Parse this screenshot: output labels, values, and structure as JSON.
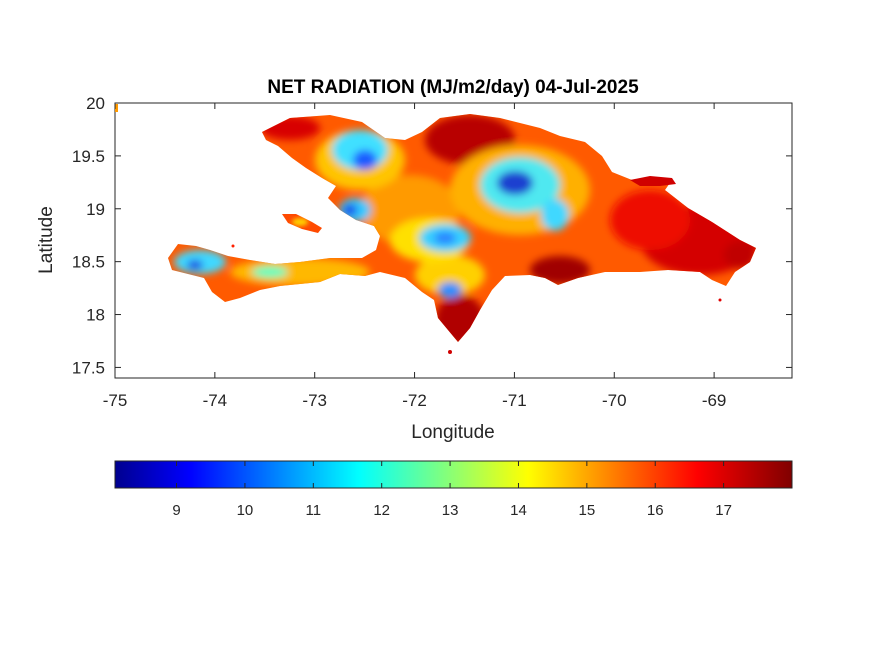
{
  "chart_data": {
    "type": "heatmap",
    "title": "NET RADIATION (MJ/m2/day) 04-Jul-2025",
    "xlabel": "Longitude",
    "ylabel": "Latitude",
    "xlim": [
      -75,
      -68.22
    ],
    "ylim": [
      17.4,
      20
    ],
    "xticks": [
      -75,
      -74,
      -73,
      -72,
      -71,
      -70,
      -69
    ],
    "xtick_labels": [
      "-75",
      "-74",
      "-73",
      "-72",
      "-71",
      "-70",
      "-69"
    ],
    "yticks": [
      17.5,
      18,
      18.5,
      19,
      19.5,
      20
    ],
    "ytick_labels": [
      "17.5",
      "18",
      "18.5",
      "19",
      "19.5",
      "20"
    ],
    "colormap": "jet",
    "colorbar": {
      "orientation": "horizontal",
      "placement": "below",
      "range": [
        8.1,
        18
      ],
      "ticks": [
        9,
        10,
        11,
        12,
        13,
        14,
        15,
        16,
        17
      ],
      "tick_labels": [
        "9",
        "10",
        "11",
        "12",
        "13",
        "14",
        "15",
        "16",
        "17"
      ]
    },
    "region": "Hispaniola (Haiti and Dominican Republic)"
  }
}
